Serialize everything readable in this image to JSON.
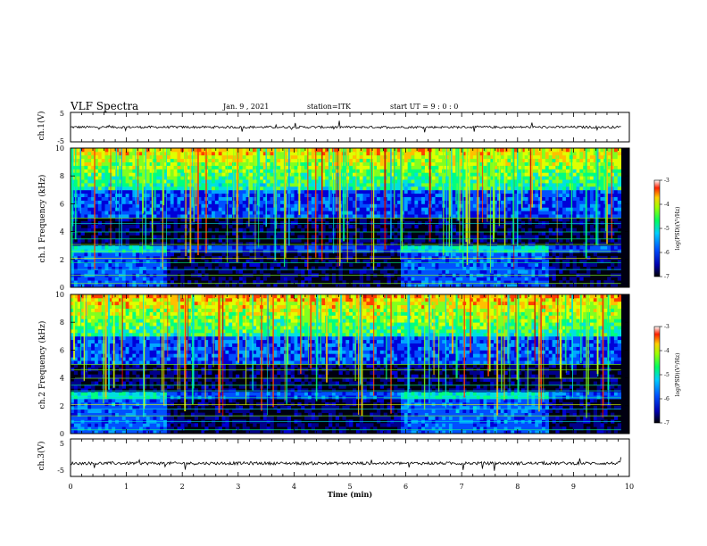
{
  "header": {
    "title": "VLF Spectra",
    "date": "Jan. 9 , 2021",
    "station": "station=ITK",
    "start": "start UT = 9 : 0 : 0"
  },
  "chart_data": [
    {
      "type": "line",
      "panel": "ch1-waveform",
      "ylabel": "ch.1(V)",
      "ylim": [
        -5,
        5
      ],
      "yticks": [
        "5",
        "-5"
      ],
      "mean_level": 0.0
    },
    {
      "type": "heatmap",
      "panel": "ch1-spectrogram",
      "ylabel": "ch.1 Frequency (kHz)",
      "ylim": [
        0,
        10
      ],
      "yticks": [
        "0",
        "2",
        "4",
        "6",
        "8",
        "10"
      ],
      "colorbar": {
        "label": "log(PSD)(V²/Hz)",
        "range": [
          -7,
          -3
        ],
        "ticks": [
          "-3",
          "-4",
          "-5",
          "-6",
          "-7"
        ]
      }
    },
    {
      "type": "heatmap",
      "panel": "ch2-spectrogram",
      "ylabel": "ch.2 Frequency (kHz)",
      "ylim": [
        0,
        10
      ],
      "yticks": [
        "0",
        "2",
        "4",
        "6",
        "8",
        "10"
      ],
      "colorbar": {
        "label": "log(PSD)(V²/Hz)",
        "range": [
          -7,
          -3
        ],
        "ticks": [
          "-3",
          "-4",
          "-5",
          "-6",
          "-7"
        ]
      }
    },
    {
      "type": "line",
      "panel": "ch3-waveform",
      "ylabel": "ch.3(V)",
      "ylim": [
        -5,
        5
      ],
      "yticks": [
        "5",
        "-5"
      ],
      "mean_level": -1.5
    }
  ],
  "xaxis": {
    "label": "Time (min)",
    "xlim": [
      0,
      10
    ],
    "ticks": [
      "0",
      "1",
      "2",
      "3",
      "4",
      "5",
      "6",
      "7",
      "8",
      "9",
      "10"
    ]
  }
}
